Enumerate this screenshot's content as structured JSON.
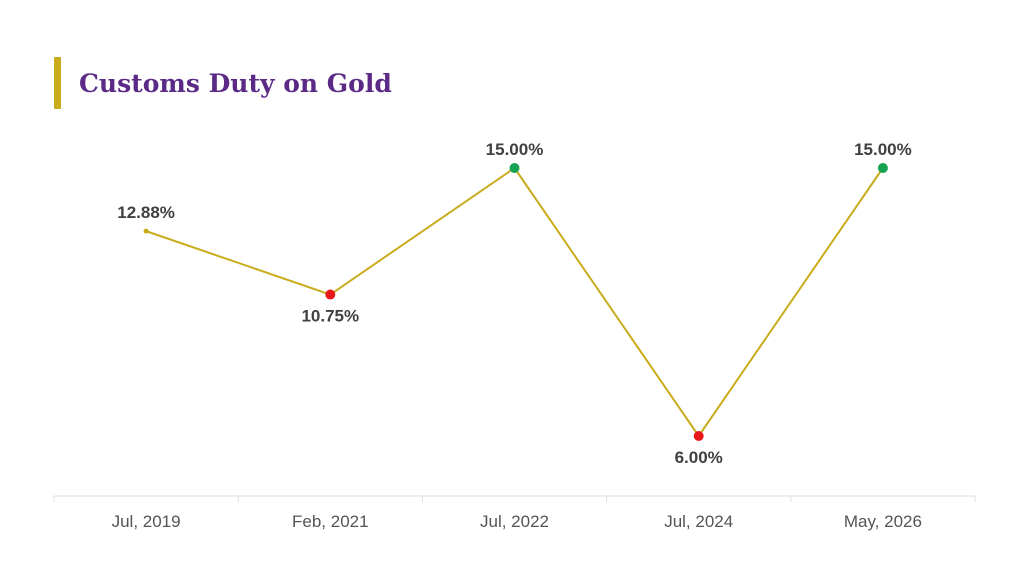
{
  "title": "Customs Duty on Gold",
  "colors": {
    "title_text": "#5b2a86",
    "title_accent": "#c9ac1c",
    "line": "#c9ac1c",
    "marker_default": "#c9ac1c",
    "marker_decrease": "#e8191d",
    "marker_increase": "#16a453",
    "value_label": "#404040",
    "tick_label": "#555555",
    "axis": "#dedede"
  },
  "chart_data": {
    "type": "line",
    "title": "Customs Duty on Gold",
    "categories": [
      "Jul, 2019",
      "Feb, 2021",
      "Jul, 2022",
      "Jul, 2024",
      "May, 2026"
    ],
    "values": [
      12.88,
      10.75,
      15.0,
      6.0,
      15.0
    ],
    "value_labels": [
      "12.88%",
      "10.75%",
      "15.00%",
      "6.00%",
      "15.00%"
    ],
    "marker_status": [
      "neutral",
      "decrease",
      "increase",
      "decrease",
      "increase"
    ],
    "unit": "%",
    "xlabel": "",
    "ylabel": "",
    "ylim": [
      6.0,
      15.0
    ],
    "grid": false,
    "legend": "none"
  }
}
